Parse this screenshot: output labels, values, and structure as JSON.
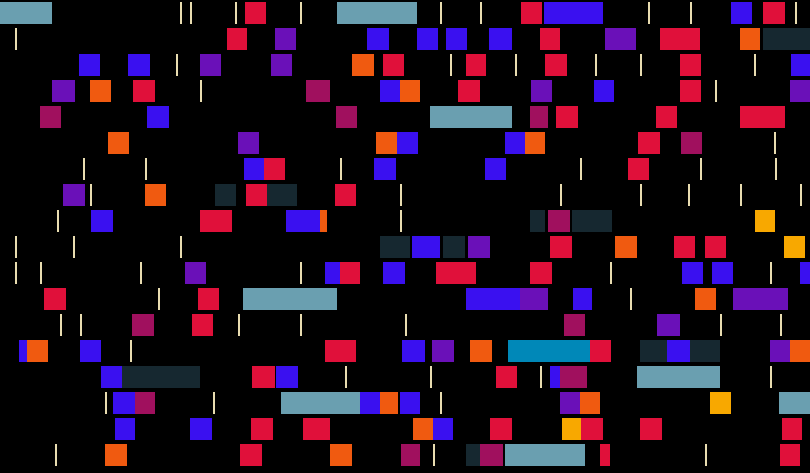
{
  "palette": {
    "background": "#000000",
    "red": "#e0103a",
    "blue": "#3a10f0",
    "purple": "#6a10b8",
    "orange": "#f05a10",
    "amber": "#f8a800",
    "teal": "#6a9fb0",
    "dark": "#162830",
    "magenta": "#a0105e",
    "cyan": "#0088b8",
    "line": "#e8dcb0"
  }
}
